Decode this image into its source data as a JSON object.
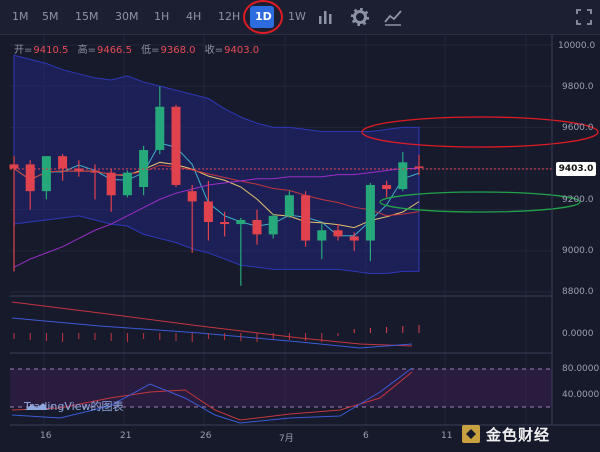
{
  "timeframes": [
    "1M",
    "5M",
    "15M",
    "30M",
    "1H",
    "4H",
    "12H",
    "1D",
    "1W"
  ],
  "active_timeframe": "1D",
  "toolbar_icons": [
    "bar-chart-icon",
    "gear-icon",
    "indicator-icon",
    "fullscreen-icon"
  ],
  "ohlc": {
    "open_label": "开=",
    "open": "9410.5",
    "high_label": "高=",
    "high": "9466.5",
    "low_label": "低=",
    "low": "9368.0",
    "close_label": "收=",
    "close": "9403.0"
  },
  "last_price_label": "9403.0",
  "watermark": "TradingView的图表",
  "brand": "金色财经",
  "colors": {
    "up": "#26a87a",
    "down": "#e0424e",
    "band": "#2a2d7a",
    "annotation_red": "#e01b24",
    "annotation_green": "#22a34a"
  },
  "chart_data": {
    "type": "candlestick",
    "x_tick_labels": [
      "16",
      "21",
      "26",
      "7月",
      "6",
      "11"
    ],
    "y_tick_labels": [
      "10000.0",
      "9800.0",
      "9600.0",
      "9400.0",
      "9200.0",
      "9000.0",
      "8800.0"
    ],
    "ylim": [
      8800,
      10000
    ],
    "candles": [
      {
        "o": 9420,
        "h": 9460,
        "l": 8900,
        "c": 9400
      },
      {
        "o": 9420,
        "h": 9440,
        "l": 9200,
        "c": 9290
      },
      {
        "o": 9290,
        "h": 9460,
        "l": 9250,
        "c": 9460
      },
      {
        "o": 9460,
        "h": 9470,
        "l": 9340,
        "c": 9400
      },
      {
        "o": 9400,
        "h": 9440,
        "l": 9360,
        "c": 9390
      },
      {
        "o": 9390,
        "h": 9420,
        "l": 9250,
        "c": 9380
      },
      {
        "o": 9380,
        "h": 9400,
        "l": 9190,
        "c": 9270
      },
      {
        "o": 9270,
        "h": 9390,
        "l": 9260,
        "c": 9380
      },
      {
        "o": 9310,
        "h": 9510,
        "l": 9270,
        "c": 9490
      },
      {
        "o": 9490,
        "h": 9800,
        "l": 9470,
        "c": 9700
      },
      {
        "o": 9700,
        "h": 9710,
        "l": 9310,
        "c": 9320
      },
      {
        "o": 9290,
        "h": 9320,
        "l": 8990,
        "c": 9240
      },
      {
        "o": 9240,
        "h": 9340,
        "l": 9050,
        "c": 9140
      },
      {
        "o": 9140,
        "h": 9190,
        "l": 9070,
        "c": 9130
      },
      {
        "o": 9130,
        "h": 9160,
        "l": 8830,
        "c": 9150
      },
      {
        "o": 9150,
        "h": 9200,
        "l": 9030,
        "c": 9080
      },
      {
        "o": 9080,
        "h": 9180,
        "l": 9060,
        "c": 9170
      },
      {
        "o": 9170,
        "h": 9290,
        "l": 9160,
        "c": 9270
      },
      {
        "o": 9270,
        "h": 9290,
        "l": 9020,
        "c": 9050
      },
      {
        "o": 9050,
        "h": 9130,
        "l": 8960,
        "c": 9100
      },
      {
        "o": 9100,
        "h": 9130,
        "l": 9050,
        "c": 9070
      },
      {
        "o": 9070,
        "h": 9090,
        "l": 9000,
        "c": 9050
      },
      {
        "o": 9050,
        "h": 9330,
        "l": 8950,
        "c": 9320
      },
      {
        "o": 9320,
        "h": 9340,
        "l": 9260,
        "c": 9300
      },
      {
        "o": 9300,
        "h": 9480,
        "l": 9290,
        "c": 9430
      },
      {
        "o": 9410,
        "h": 9467,
        "l": 9368,
        "c": 9403
      }
    ],
    "oscillator_y_tick_labels": [
      "0.0000"
    ],
    "rsi_y_tick_labels": [
      "80.0000",
      "40.0000"
    ]
  }
}
